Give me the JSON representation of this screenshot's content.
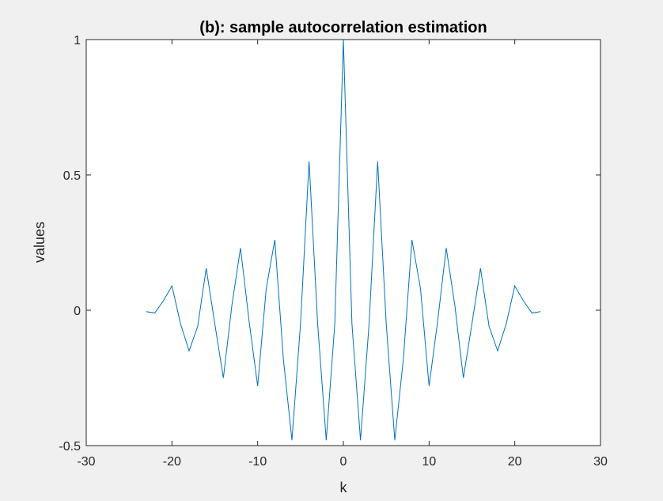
{
  "chart_data": {
    "type": "line",
    "title": "(b): sample autocorrelation estimation",
    "xlabel": "k",
    "ylabel": "values",
    "xlim": [
      -30,
      30
    ],
    "ylim": [
      -0.5,
      1
    ],
    "xticks": [
      -30,
      -20,
      -10,
      0,
      10,
      20,
      30
    ],
    "yticks": [
      -0.5,
      0,
      0.5,
      1
    ],
    "xtick_labels": [
      "-30",
      "-20",
      "-10",
      "0",
      "10",
      "20",
      "30"
    ],
    "ytick_labels": [
      "-0.5",
      "0",
      "0.5",
      "1"
    ],
    "grid": false,
    "line_color": "#0072BD",
    "series": [
      {
        "x": [
          -23,
          -22,
          -21,
          -20,
          -19,
          -18,
          -17,
          -16,
          -15,
          -14,
          -13,
          -12,
          -11,
          -10,
          -9,
          -8,
          -7,
          -6,
          -5,
          -4,
          -3,
          -2,
          -1,
          0,
          1,
          2,
          3,
          4,
          5,
          6,
          7,
          8,
          9,
          10,
          11,
          12,
          13,
          14,
          15,
          16,
          17,
          18,
          19,
          20,
          21,
          22,
          23
        ],
        "values": [
          -0.005,
          -0.01,
          0.035,
          0.09,
          -0.05,
          -0.15,
          -0.06,
          0.155,
          -0.05,
          -0.25,
          0.02,
          0.23,
          -0.04,
          -0.28,
          0.08,
          0.26,
          -0.18,
          -0.48,
          -0.05,
          0.55,
          -0.05,
          -0.48,
          -0.05,
          1.0,
          -0.05,
          -0.48,
          -0.05,
          0.55,
          -0.05,
          -0.48,
          -0.18,
          0.26,
          0.08,
          -0.28,
          -0.04,
          0.23,
          0.02,
          -0.25,
          -0.05,
          0.155,
          -0.06,
          -0.15,
          -0.05,
          0.09,
          0.035,
          -0.01,
          -0.005
        ]
      }
    ]
  }
}
